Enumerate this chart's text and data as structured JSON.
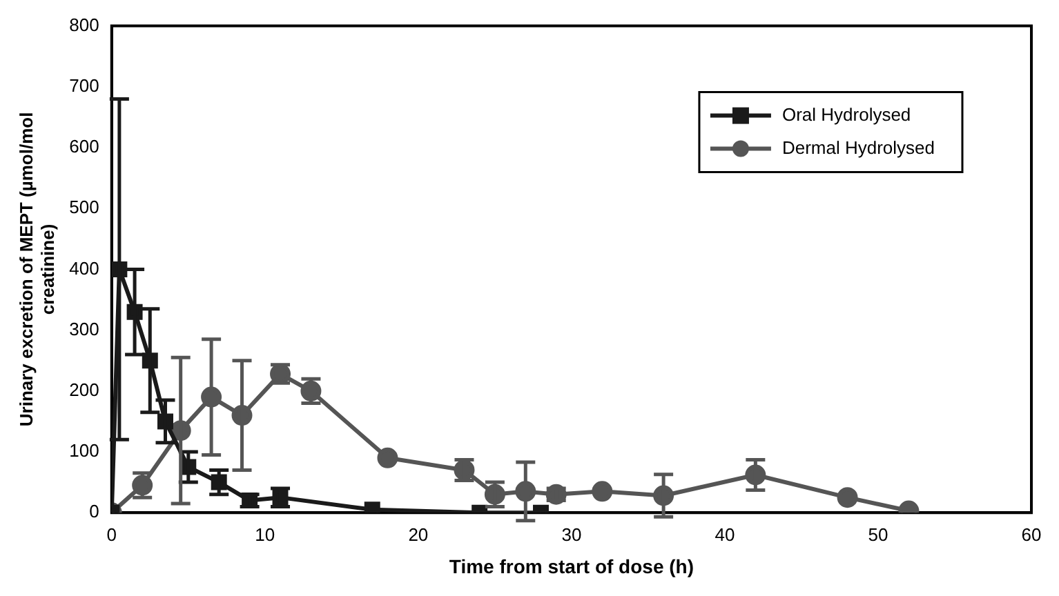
{
  "chart_data": {
    "type": "line",
    "xlabel": "Time from start of dose (h)",
    "ylabel": "Urinary excretion of MEPT (µmol/mol creatinine)",
    "xlim": [
      0,
      60
    ],
    "xticks": [
      0,
      10,
      20,
      30,
      40,
      50,
      60
    ],
    "ylim": [
      0,
      800
    ],
    "yticks": [
      0,
      100,
      200,
      300,
      400,
      500,
      600,
      700,
      800
    ],
    "grid": false,
    "legend": "top right",
    "line_style": "solid",
    "series": [
      {
        "name": "Oral Hydrolysed",
        "color": "#1a1a1a",
        "marker": "square",
        "x": [
          0,
          0.5,
          1.5,
          2.5,
          3.5,
          5,
          7,
          9,
          11,
          17,
          24,
          28
        ],
        "values": [
          0,
          400,
          330,
          250,
          150,
          75,
          50,
          20,
          25,
          5,
          0,
          0
        ],
        "errors": [
          null,
          280,
          70,
          85,
          35,
          25,
          20,
          10,
          15,
          null,
          null,
          null
        ]
      },
      {
        "name": "Dermal Hydrolysed",
        "color": "#555555",
        "marker": "circle",
        "x": [
          0,
          2,
          4.5,
          6.5,
          8.5,
          11,
          13,
          18,
          23,
          25,
          27,
          29,
          32,
          36,
          42,
          48,
          52
        ],
        "values": [
          0,
          45,
          135,
          190,
          160,
          228,
          200,
          90,
          70,
          30,
          35,
          30,
          35,
          28,
          62,
          25,
          3
        ],
        "errors": [
          null,
          20,
          120,
          95,
          90,
          15,
          20,
          null,
          17,
          20,
          48,
          10,
          null,
          35,
          25,
          null,
          null
        ]
      }
    ]
  }
}
